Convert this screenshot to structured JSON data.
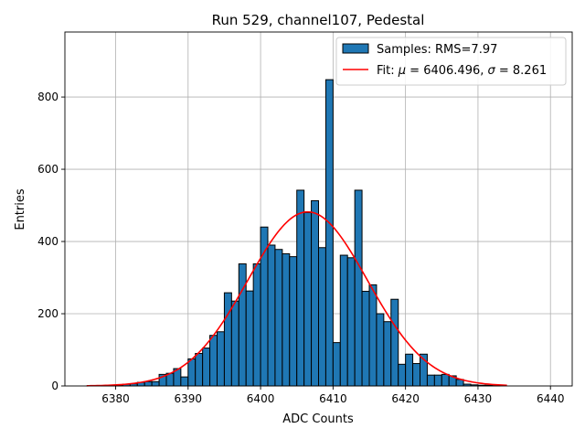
{
  "chart_data": {
    "type": "bar",
    "title": "Run 529, channel107, Pedestal",
    "xlabel": "ADC Counts",
    "ylabel": "Entries",
    "xlim": [
      6373,
      6443
    ],
    "ylim": [
      0,
      980
    ],
    "xticks": [
      6380,
      6390,
      6400,
      6410,
      6420,
      6430,
      6440
    ],
    "yticks": [
      0,
      200,
      400,
      600,
      800
    ],
    "grid": true,
    "legend_placement": "upper right",
    "histogram": {
      "name": "Samples: RMS=7.97",
      "color": "#1f77b4",
      "edgecolor": "#000000",
      "bin_width": 1,
      "bin_starts": [
        6376,
        6377,
        6378,
        6379,
        6380,
        6381,
        6382,
        6383,
        6384,
        6385,
        6386,
        6387,
        6388,
        6389,
        6390,
        6391,
        6392,
        6393,
        6394,
        6395,
        6396,
        6397,
        6398,
        6399,
        6400,
        6401,
        6402,
        6403,
        6404,
        6405,
        6406,
        6407,
        6408,
        6409,
        6410,
        6411,
        6412,
        6413,
        6414,
        6415,
        6416,
        6417,
        6418,
        6419,
        6420,
        6421,
        6422,
        6423,
        6424,
        6425,
        6426,
        6427,
        6428,
        6429,
        6430,
        6431,
        6432,
        6433
      ],
      "counts": [
        0,
        0,
        1,
        1,
        2,
        5,
        6,
        10,
        12,
        12,
        32,
        35,
        48,
        25,
        75,
        90,
        105,
        140,
        150,
        258,
        235,
        338,
        263,
        338,
        440,
        390,
        378,
        366,
        358,
        542,
        480,
        513,
        383,
        848,
        120,
        362,
        355,
        542,
        262,
        280,
        200,
        178,
        240,
        60,
        88,
        62,
        88,
        30,
        30,
        32,
        28,
        18,
        5,
        3,
        2,
        2,
        1,
        0
      ]
    },
    "fit": {
      "name": "Fit: $\\mu$ = 6406.496, $\\sigma$ = 8.261",
      "color": "#ff0000",
      "mu": 6406.496,
      "sigma": 8.261,
      "amplitude": 482,
      "x_range": [
        6376,
        6434
      ]
    },
    "legend": [
      {
        "label_prefix": "Samples: RMS=7.97",
        "kind": "patch"
      },
      {
        "label_prefix": "Fit: ",
        "mu_symbol": "μ",
        "mu_text": " = 6406.496, ",
        "sigma_symbol": "σ",
        "sigma_text": " = 8.261",
        "kind": "line"
      }
    ]
  }
}
